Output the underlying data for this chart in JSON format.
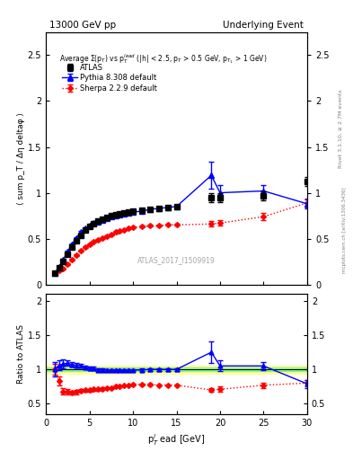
{
  "title_left": "13000 GeV pp",
  "title_right": "Underlying Event",
  "right_label": "Rivet 3.1.10, ≥ 2.7M events",
  "right_label2": "mcplots.cern.ch [arXiv:1306.3436]",
  "watermark": "ATLAS_2017_I1509919",
  "main_title": "Average Σ(p_T) vs p_T^{lead} (|h| < 2.5, p_T > 0.5 GeV, p_{T1} > 1 GeV)",
  "ylabel_main": "⟨ sum p_T / Δη deltaφ ⟩",
  "ylabel_ratio": "Ratio to ATLAS",
  "xlabel": "p_T^l ead [GeV]",
  "ylim_main": [
    0,
    2.75
  ],
  "ylim_ratio": [
    0.35,
    2.1
  ],
  "yticks_main": [
    0.0,
    0.5,
    1.0,
    1.5,
    2.0,
    2.5
  ],
  "yticks_ratio": [
    0.5,
    1.0,
    1.5,
    2.0
  ],
  "xlim": [
    0,
    30
  ],
  "xticks": [
    0,
    5,
    10,
    15,
    20,
    25,
    30
  ],
  "atlas_x": [
    1.0,
    1.5,
    2.0,
    2.5,
    3.0,
    3.5,
    4.0,
    4.5,
    5.0,
    5.5,
    6.0,
    6.5,
    7.0,
    7.5,
    8.0,
    8.5,
    9.0,
    9.5,
    10.0,
    11.0,
    12.0,
    13.0,
    14.0,
    15.0,
    19.0,
    20.0,
    25.0,
    30.0
  ],
  "atlas_y": [
    0.12,
    0.18,
    0.25,
    0.33,
    0.41,
    0.48,
    0.54,
    0.59,
    0.63,
    0.66,
    0.69,
    0.71,
    0.73,
    0.75,
    0.76,
    0.77,
    0.78,
    0.79,
    0.8,
    0.81,
    0.82,
    0.83,
    0.84,
    0.85,
    0.95,
    0.95,
    0.97,
    1.12
  ],
  "atlas_yerr": [
    0.01,
    0.01,
    0.01,
    0.01,
    0.01,
    0.01,
    0.01,
    0.01,
    0.01,
    0.01,
    0.01,
    0.01,
    0.01,
    0.01,
    0.01,
    0.01,
    0.01,
    0.01,
    0.01,
    0.02,
    0.02,
    0.02,
    0.02,
    0.02,
    0.05,
    0.05,
    0.05,
    0.05
  ],
  "pythia_x": [
    1.0,
    1.5,
    2.0,
    2.5,
    3.0,
    3.5,
    4.0,
    4.5,
    5.0,
    5.5,
    6.0,
    6.5,
    7.0,
    7.5,
    8.0,
    8.5,
    9.0,
    9.5,
    10.0,
    11.0,
    12.0,
    13.0,
    14.0,
    15.0,
    19.0,
    20.0,
    25.0,
    30.0
  ],
  "pythia_y": [
    0.12,
    0.19,
    0.27,
    0.36,
    0.44,
    0.51,
    0.57,
    0.61,
    0.64,
    0.67,
    0.68,
    0.7,
    0.72,
    0.74,
    0.75,
    0.76,
    0.77,
    0.78,
    0.79,
    0.8,
    0.82,
    0.83,
    0.84,
    0.85,
    1.19,
    1.0,
    1.02,
    0.88
  ],
  "pythia_yerr": [
    0.01,
    0.01,
    0.01,
    0.01,
    0.01,
    0.01,
    0.01,
    0.01,
    0.01,
    0.01,
    0.01,
    0.01,
    0.01,
    0.01,
    0.01,
    0.01,
    0.01,
    0.01,
    0.01,
    0.02,
    0.02,
    0.02,
    0.02,
    0.02,
    0.15,
    0.08,
    0.06,
    0.05
  ],
  "sherpa_x": [
    1.0,
    1.5,
    2.0,
    2.5,
    3.0,
    3.5,
    4.0,
    4.5,
    5.0,
    5.5,
    6.0,
    6.5,
    7.0,
    7.5,
    8.0,
    8.5,
    9.0,
    9.5,
    10.0,
    11.0,
    12.0,
    13.0,
    14.0,
    15.0,
    19.0,
    20.0,
    25.0,
    30.0
  ],
  "sherpa_y": [
    0.12,
    0.15,
    0.17,
    0.22,
    0.27,
    0.32,
    0.37,
    0.41,
    0.44,
    0.47,
    0.49,
    0.51,
    0.53,
    0.55,
    0.57,
    0.58,
    0.59,
    0.61,
    0.62,
    0.63,
    0.64,
    0.64,
    0.65,
    0.65,
    0.66,
    0.67,
    0.74,
    0.89
  ],
  "sherpa_yerr": [
    0.01,
    0.01,
    0.01,
    0.01,
    0.01,
    0.01,
    0.01,
    0.01,
    0.01,
    0.01,
    0.01,
    0.01,
    0.01,
    0.01,
    0.01,
    0.01,
    0.01,
    0.01,
    0.01,
    0.01,
    0.01,
    0.01,
    0.01,
    0.01,
    0.03,
    0.03,
    0.04,
    0.05
  ],
  "pythia_ratio_x": [
    1.0,
    1.5,
    2.0,
    2.5,
    3.0,
    3.5,
    4.0,
    4.5,
    5.0,
    5.5,
    6.0,
    6.5,
    7.0,
    7.5,
    8.0,
    8.5,
    9.0,
    9.5,
    10.0,
    11.0,
    12.0,
    13.0,
    14.0,
    15.0,
    19.0,
    20.0,
    25.0,
    30.0
  ],
  "pythia_ratio_y": [
    1.0,
    1.06,
    1.08,
    1.09,
    1.07,
    1.06,
    1.06,
    1.03,
    1.02,
    1.02,
    0.99,
    0.99,
    0.99,
    0.99,
    0.99,
    0.99,
    0.99,
    0.99,
    0.99,
    0.99,
    1.0,
    1.0,
    1.0,
    1.0,
    1.25,
    1.05,
    1.05,
    0.79
  ],
  "pythia_ratio_yerr": [
    0.1,
    0.07,
    0.06,
    0.04,
    0.03,
    0.03,
    0.02,
    0.02,
    0.02,
    0.02,
    0.02,
    0.02,
    0.01,
    0.01,
    0.01,
    0.01,
    0.01,
    0.01,
    0.01,
    0.02,
    0.02,
    0.02,
    0.02,
    0.02,
    0.16,
    0.08,
    0.06,
    0.06
  ],
  "sherpa_ratio_x": [
    1.0,
    1.5,
    2.0,
    2.5,
    3.0,
    3.5,
    4.0,
    4.5,
    5.0,
    5.5,
    6.0,
    6.5,
    7.0,
    7.5,
    8.0,
    8.5,
    9.0,
    9.5,
    10.0,
    11.0,
    12.0,
    13.0,
    14.0,
    15.0,
    19.0,
    20.0,
    25.0,
    30.0
  ],
  "sherpa_ratio_y": [
    1.0,
    0.83,
    0.68,
    0.67,
    0.66,
    0.67,
    0.69,
    0.7,
    0.7,
    0.71,
    0.71,
    0.72,
    0.73,
    0.73,
    0.75,
    0.75,
    0.76,
    0.77,
    0.78,
    0.78,
    0.78,
    0.77,
    0.77,
    0.77,
    0.7,
    0.71,
    0.77,
    0.8
  ],
  "sherpa_ratio_yerr": [
    0.08,
    0.07,
    0.05,
    0.04,
    0.03,
    0.03,
    0.02,
    0.02,
    0.02,
    0.02,
    0.02,
    0.02,
    0.01,
    0.01,
    0.01,
    0.01,
    0.01,
    0.01,
    0.01,
    0.01,
    0.01,
    0.01,
    0.01,
    0.01,
    0.03,
    0.04,
    0.04,
    0.05
  ],
  "band_color_green": "#90EE90",
  "band_color_yellow": "#FFFF99",
  "band_green_half": 0.03,
  "band_yellow_half": 0.06,
  "atlas_color": "#000000",
  "pythia_color": "#0000FF",
  "sherpa_color": "#FF0000",
  "legend_entries": [
    "ATLAS",
    "Pythia 8.308 default",
    "Sherpa 2.2.9 default"
  ]
}
